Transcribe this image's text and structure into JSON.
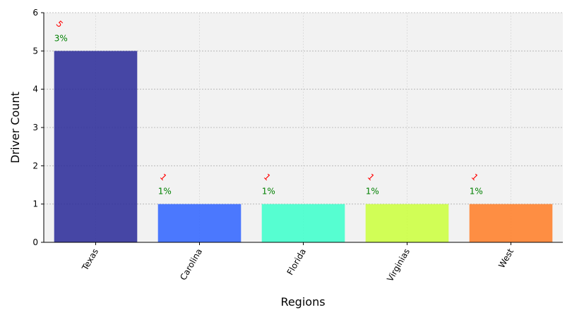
{
  "chart_data": {
    "type": "bar",
    "title": "",
    "xlabel": "Regions",
    "ylabel": "Driver Count",
    "categories": [
      "Texas",
      "Carolina",
      "Florida",
      "Virginias",
      "West"
    ],
    "values": [
      5,
      1,
      1,
      1,
      1
    ],
    "value_labels": [
      "5",
      "1",
      "1",
      "1",
      "1"
    ],
    "percent_labels": [
      "3%",
      "1%",
      "1%",
      "1%",
      "1%"
    ],
    "bar_colors": [
      "#2e2e9a",
      "#3366ff",
      "#40ffcc",
      "#ccff40",
      "#ff7f2a"
    ],
    "value_label_color": "#ff0000",
    "percent_label_color": "#008000",
    "plot_background": "#f2f2f2",
    "ylim": [
      0,
      6
    ],
    "yticks": [
      "0",
      "1",
      "2",
      "3",
      "4",
      "5",
      "6"
    ],
    "grid": true,
    "legend": "none"
  }
}
